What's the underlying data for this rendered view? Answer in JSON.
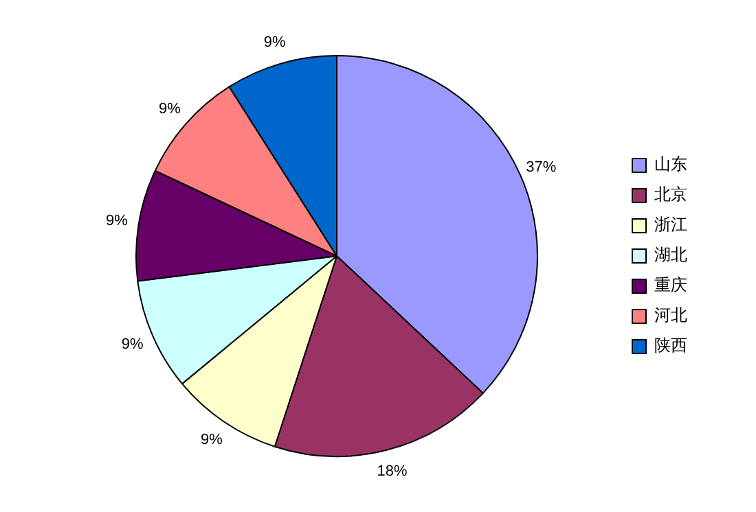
{
  "chart_data": {
    "type": "pie",
    "categories": [
      "山东",
      "北京",
      "浙江",
      "湖北",
      "重庆",
      "河北",
      "陕西"
    ],
    "values": [
      37,
      18,
      9,
      9,
      9,
      9,
      9
    ],
    "colors": [
      "#9999ff",
      "#993366",
      "#ffffcc",
      "#ccffff",
      "#660066",
      "#ff8080",
      "#0066cc"
    ],
    "value_labels": [
      "37%",
      "18%",
      "9%",
      "9%",
      "9%",
      "9%",
      "9%"
    ],
    "legend": "right"
  }
}
